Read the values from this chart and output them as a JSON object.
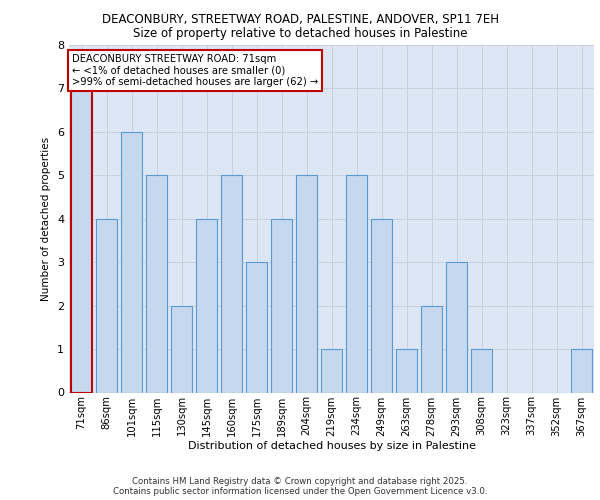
{
  "title_line1": "DEACONBURY, STREETWAY ROAD, PALESTINE, ANDOVER, SP11 7EH",
  "title_line2": "Size of property relative to detached houses in Palestine",
  "xlabel": "Distribution of detached houses by size in Palestine",
  "ylabel": "Number of detached properties",
  "categories": [
    "71sqm",
    "86sqm",
    "101sqm",
    "115sqm",
    "130sqm",
    "145sqm",
    "160sqm",
    "175sqm",
    "189sqm",
    "204sqm",
    "219sqm",
    "234sqm",
    "249sqm",
    "263sqm",
    "278sqm",
    "293sqm",
    "308sqm",
    "323sqm",
    "337sqm",
    "352sqm",
    "367sqm"
  ],
  "values": [
    7,
    4,
    6,
    5,
    2,
    4,
    5,
    3,
    4,
    5,
    1,
    5,
    4,
    1,
    2,
    3,
    1,
    0,
    0,
    0,
    1
  ],
  "highlight_index": 0,
  "bar_color_normal": "#c5d8ed",
  "bar_edge_color": "#5b9bd5",
  "highlight_bar_edge_color": "#c00000",
  "ylim": [
    0,
    8
  ],
  "yticks": [
    0,
    1,
    2,
    3,
    4,
    5,
    6,
    7,
    8
  ],
  "grid_color": "#c8d0dc",
  "background_color": "#dce6f5",
  "annotation_text": "DEACONBURY STREETWAY ROAD: 71sqm\n← <1% of detached houses are smaller (0)\n>99% of semi-detached houses are larger (62) →",
  "annotation_box_edge": "#c00000",
  "footer_line1": "Contains HM Land Registry data © Crown copyright and database right 2025.",
  "footer_line2": "Contains public sector information licensed under the Open Government Licence v3.0."
}
